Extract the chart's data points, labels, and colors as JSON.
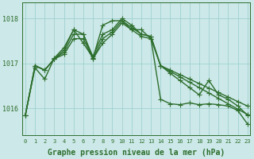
{
  "background_color": "#cce8e8",
  "grid_color": "#99cccc",
  "line_color": "#2d6e2d",
  "marker": "+",
  "markersize": 4,
  "linewidth": 1.0,
  "x_labels": [
    "0",
    "1",
    "2",
    "3",
    "4",
    "5",
    "6",
    "7",
    "8",
    "9",
    "10",
    "11",
    "12",
    "13",
    "14",
    "15",
    "16",
    "17",
    "18",
    "19",
    "20",
    "21",
    "22",
    "23"
  ],
  "xlabel": "Graphe pression niveau de la mer (hPa)",
  "xlabel_fontsize": 7,
  "yticks": [
    1016,
    1017,
    1018
  ],
  "ylim": [
    1015.4,
    1018.35
  ],
  "xlim": [
    -0.3,
    23.3
  ],
  "series": [
    [
      1015.85,
      1016.95,
      1016.85,
      1017.1,
      1017.2,
      1017.55,
      1017.55,
      1017.1,
      1017.45,
      1017.65,
      1017.9,
      1017.75,
      1017.6,
      1017.55,
      1016.95,
      1016.85,
      1016.75,
      1016.65,
      1016.55,
      1016.45,
      1016.35,
      1016.25,
      1016.15,
      1016.05
    ],
    [
      1015.85,
      1016.95,
      1016.85,
      1017.1,
      1017.25,
      1017.65,
      1017.65,
      1017.1,
      1017.55,
      1017.7,
      1017.95,
      1017.8,
      1017.65,
      1017.6,
      1016.95,
      1016.82,
      1016.7,
      1016.58,
      1016.46,
      1016.34,
      1016.22,
      1016.1,
      1015.98,
      1015.86
    ],
    [
      1015.85,
      1016.95,
      1016.85,
      1017.1,
      1017.3,
      1017.75,
      1017.65,
      1017.15,
      1017.65,
      1017.75,
      1018.0,
      1017.85,
      1017.65,
      1017.6,
      1016.95,
      1016.78,
      1016.62,
      1016.46,
      1016.3,
      1016.62,
      1016.3,
      1016.2,
      1016.05,
      1015.85
    ],
    [
      1015.85,
      1016.9,
      1016.65,
      1017.12,
      1017.35,
      1017.75,
      1017.45,
      1017.12,
      1017.85,
      1017.95,
      1017.95,
      1017.75,
      1017.75,
      1017.55,
      1016.2,
      1016.1,
      1016.08,
      1016.12,
      1016.08,
      1016.1,
      1016.08,
      1016.05,
      1015.95,
      1015.65
    ]
  ]
}
